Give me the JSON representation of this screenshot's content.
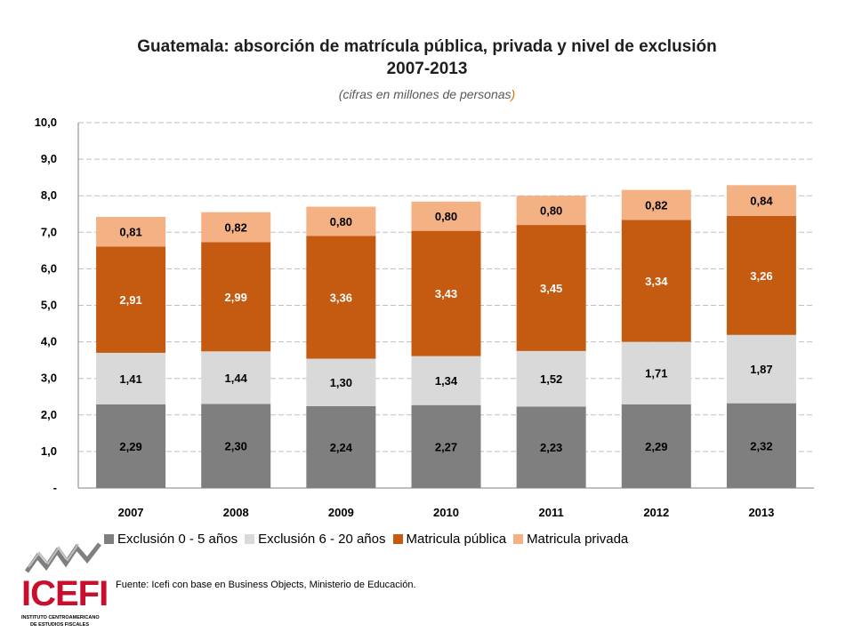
{
  "chart_data": {
    "type": "bar",
    "stacked": true,
    "title": "Guatemala: absorción de matrícula pública, privada y nivel de exclusión",
    "title_line2": "2007-2013",
    "subtitle": "cifras en millones de personas",
    "categories": [
      "2007",
      "2008",
      "2009",
      "2010",
      "2011",
      "2012",
      "2013"
    ],
    "series": [
      {
        "name": "Exclusión 0 - 5 años",
        "color": "#7f7f7f",
        "values": [
          2.29,
          2.3,
          2.24,
          2.27,
          2.23,
          2.29,
          2.32
        ],
        "labels": [
          "2,29",
          "2,30",
          "2,24",
          "2,27",
          "2,23",
          "2,29",
          "2,32"
        ]
      },
      {
        "name": "Exclusión 6 - 20 años",
        "color": "#d9d9d9",
        "values": [
          1.41,
          1.44,
          1.3,
          1.34,
          1.52,
          1.71,
          1.87
        ],
        "labels": [
          "1,41",
          "1,44",
          "1,30",
          "1,34",
          "1,52",
          "1,71",
          "1,87"
        ]
      },
      {
        "name": "Matricula pública",
        "color": "#c55a11",
        "values": [
          2.91,
          2.99,
          3.36,
          3.43,
          3.45,
          3.34,
          3.26
        ],
        "labels": [
          "2,91",
          "2,99",
          "3,36",
          "3,43",
          "3,45",
          "3,34",
          "3,26"
        ]
      },
      {
        "name": "Matricula privada",
        "color": "#f4b183",
        "values": [
          0.81,
          0.82,
          0.8,
          0.8,
          0.8,
          0.82,
          0.84
        ],
        "labels": [
          "0,81",
          "0,82",
          "0,80",
          "0,80",
          "0,80",
          "0,82",
          "0,84"
        ]
      }
    ],
    "ylim": [
      0,
      10
    ],
    "yticks": [
      0,
      1,
      2,
      3,
      4,
      5,
      6,
      7,
      8,
      9,
      10
    ],
    "ytick_labels": [
      "-",
      "1,0",
      "2,0",
      "3,0",
      "4,0",
      "5,0",
      "6,0",
      "7,0",
      "8,0",
      "9,0",
      "10,0"
    ],
    "grid": true,
    "legend": "bottom"
  },
  "source": "Fuente: Icefi con base en Business Objects, Ministerio de Educación.",
  "logo": {
    "name": "ICEFI",
    "subtitle_line1": "INSTITUTO CENTROAMERICANO",
    "subtitle_line2": "DE ESTUDIOS FISCALES"
  }
}
